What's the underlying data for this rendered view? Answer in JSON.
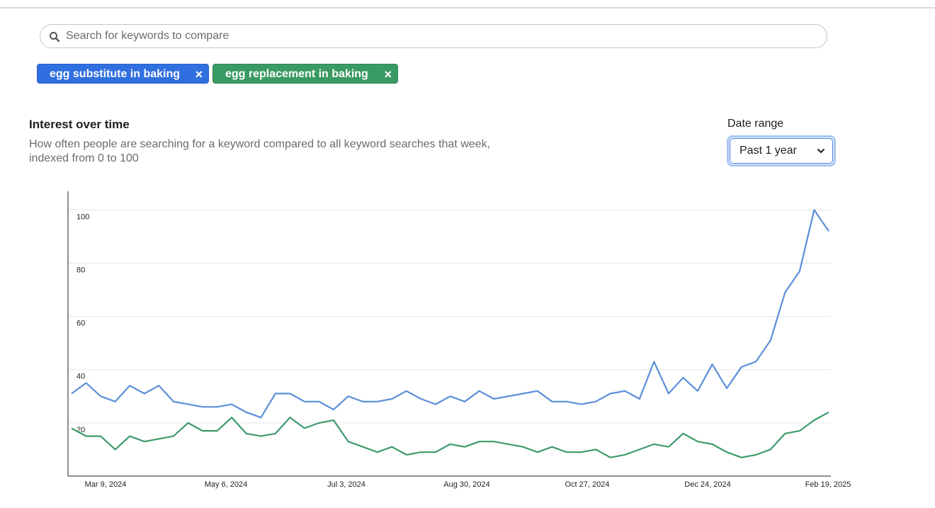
{
  "search": {
    "placeholder": "Search for keywords to compare",
    "value": ""
  },
  "keywords": [
    {
      "label": "egg substitute in baking",
      "color": "#2f6fdf",
      "remove": "×"
    },
    {
      "label": "egg replacement in baking",
      "color": "#3a9a63",
      "remove": "×"
    }
  ],
  "section": {
    "title": "Interest over time",
    "subtitle": "How often people are searching for a keyword compared to all keyword searches that week, indexed from 0 to 100"
  },
  "date_range": {
    "label": "Date range",
    "selected": "Past 1 year"
  },
  "icons": {
    "search": "search-icon",
    "chevron": "chevron-down-icon",
    "close": "close-icon"
  },
  "chart_data": {
    "type": "line",
    "ylim": [
      0,
      107
    ],
    "yticks": [
      20,
      40,
      60,
      80,
      100
    ],
    "grid": true,
    "xtick_labels": [
      "Mar 9, 2024",
      "May 6, 2024",
      "Jul 3, 2024",
      "Aug 30, 2024",
      "Oct 27, 2024",
      "Dec 24, 2024",
      "Feb 19, 2025"
    ],
    "series": [
      {
        "name": "egg substitute in baking",
        "color": "#5b8fd9",
        "values": [
          31,
          35,
          30,
          28,
          34,
          31,
          34,
          28,
          27,
          26,
          26,
          27,
          24,
          22,
          31,
          31,
          28,
          28,
          25,
          30,
          28,
          28,
          29,
          32,
          29,
          27,
          30,
          28,
          32,
          29,
          30,
          31,
          32,
          28,
          28,
          27,
          28,
          31,
          32,
          29,
          43,
          31,
          37,
          32,
          42,
          33,
          41,
          43,
          51,
          69,
          77,
          100,
          92
        ]
      },
      {
        "name": "egg replacement in baking",
        "color": "#3e9a6b",
        "values": [
          18,
          15,
          15,
          10,
          15,
          13,
          14,
          15,
          20,
          17,
          17,
          22,
          16,
          15,
          16,
          22,
          18,
          20,
          21,
          13,
          11,
          9,
          11,
          8,
          9,
          9,
          12,
          11,
          13,
          13,
          12,
          11,
          9,
          11,
          9,
          9,
          10,
          7,
          8,
          10,
          12,
          11,
          16,
          13,
          12,
          9,
          7,
          8,
          10,
          16,
          17,
          21,
          24
        ]
      }
    ]
  }
}
